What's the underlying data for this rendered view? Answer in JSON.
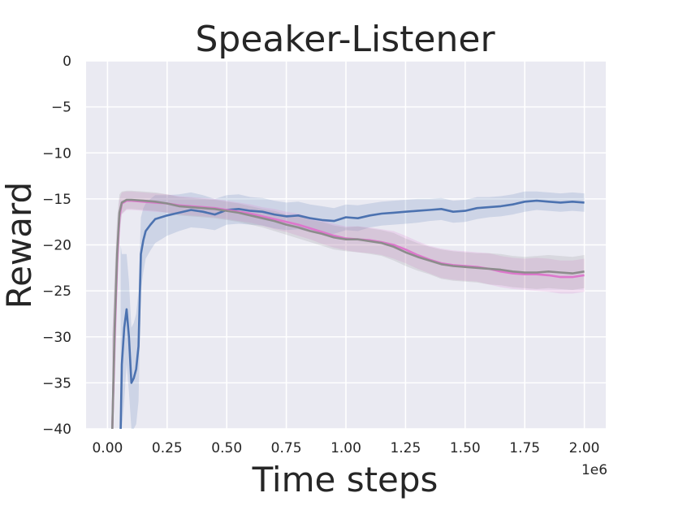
{
  "chart_data": {
    "type": "line",
    "title": "Speaker-Listener",
    "xlabel": "Time steps",
    "ylabel": "Reward",
    "x_offset_label": "1e6",
    "xlim": [
      -0.09,
      2.09
    ],
    "ylim": [
      -40,
      0
    ],
    "xticks": [
      0.0,
      0.25,
      0.5,
      0.75,
      1.0,
      1.25,
      1.5,
      1.75,
      2.0
    ],
    "xtick_labels": [
      "0.00",
      "0.25",
      "0.50",
      "0.75",
      "1.00",
      "1.25",
      "1.50",
      "1.75",
      "2.00"
    ],
    "yticks": [
      0,
      -5,
      -10,
      -15,
      -20,
      -25,
      -30,
      -35,
      -40
    ],
    "ytick_labels": [
      "0",
      "−5",
      "−10",
      "−15",
      "−20",
      "−25",
      "−30",
      "−35",
      "−40"
    ],
    "grid": true,
    "legend": "none",
    "background": "#eaeaf2",
    "series": [
      {
        "color": "#4c72b0",
        "x": [
          0.055,
          0.06,
          0.07,
          0.08,
          0.09,
          0.1,
          0.11,
          0.12,
          0.13,
          0.14,
          0.15,
          0.16,
          0.18,
          0.2,
          0.25,
          0.3,
          0.35,
          0.4,
          0.45,
          0.5,
          0.55,
          0.6,
          0.65,
          0.7,
          0.75,
          0.8,
          0.85,
          0.9,
          0.95,
          1.0,
          1.05,
          1.1,
          1.15,
          1.2,
          1.25,
          1.3,
          1.35,
          1.4,
          1.45,
          1.5,
          1.55,
          1.6,
          1.65,
          1.7,
          1.75,
          1.8,
          1.85,
          1.9,
          1.95,
          2.0
        ],
        "y": [
          -40,
          -33,
          -29,
          -27,
          -30,
          -35,
          -34.5,
          -33.5,
          -31,
          -21,
          -19.5,
          -18.5,
          -17.8,
          -17.2,
          -16.8,
          -16.5,
          -16.2,
          -16.4,
          -16.7,
          -16.2,
          -16.1,
          -16.3,
          -16.4,
          -16.7,
          -16.9,
          -16.8,
          -17.1,
          -17.3,
          -17.4,
          -17.0,
          -17.1,
          -16.8,
          -16.6,
          -16.5,
          -16.4,
          -16.3,
          -16.2,
          -16.1,
          -16.4,
          -16.3,
          -16.0,
          -15.9,
          -15.8,
          -15.6,
          -15.3,
          -15.2,
          -15.3,
          -15.4,
          -15.3,
          -15.4
        ],
        "band": [
          20,
          12,
          8,
          6,
          6,
          6,
          6,
          6,
          6,
          4,
          3.5,
          3,
          2.8,
          2.6,
          2.2,
          2.0,
          1.9,
          1.8,
          1.7,
          1.6,
          1.6,
          1.5,
          1.5,
          1.5,
          1.5,
          1.5,
          1.5,
          1.5,
          1.4,
          1.4,
          1.4,
          1.3,
          1.3,
          1.3,
          1.3,
          1.3,
          1.2,
          1.2,
          1.2,
          1.2,
          1.2,
          1.1,
          1.1,
          1.1,
          1.1,
          1.0,
          1.0,
          1.0,
          1.0,
          1.0
        ]
      },
      {
        "color": "#dd77cc",
        "x": [
          0.02,
          0.03,
          0.04,
          0.05,
          0.06,
          0.08,
          0.1,
          0.15,
          0.2,
          0.25,
          0.3,
          0.35,
          0.4,
          0.45,
          0.5,
          0.55,
          0.6,
          0.65,
          0.7,
          0.75,
          0.8,
          0.85,
          0.9,
          0.95,
          1.0,
          1.05,
          1.1,
          1.15,
          1.2,
          1.25,
          1.3,
          1.35,
          1.4,
          1.45,
          1.5,
          1.55,
          1.6,
          1.65,
          1.7,
          1.75,
          1.8,
          1.85,
          1.9,
          1.95,
          2.0
        ],
        "y": [
          -40,
          -30,
          -22,
          -17,
          -15.5,
          -15.2,
          -15.2,
          -15.3,
          -15.4,
          -15.5,
          -15.7,
          -15.8,
          -15.9,
          -16.0,
          -16.2,
          -16.4,
          -16.6,
          -16.9,
          -17.2,
          -17.5,
          -17.8,
          -18.2,
          -18.6,
          -19.0,
          -19.3,
          -19.4,
          -19.5,
          -19.7,
          -20.0,
          -20.5,
          -21.1,
          -21.6,
          -22.0,
          -22.2,
          -22.3,
          -22.4,
          -22.6,
          -22.9,
          -23.1,
          -23.2,
          -23.2,
          -23.3,
          -23.5,
          -23.5,
          -23.3
        ],
        "band": [
          10,
          6,
          4,
          2,
          1.2,
          1.0,
          1.0,
          1.0,
          1.0,
          1.0,
          1.0,
          1.0,
          1.0,
          1.0,
          1.0,
          1.0,
          1.0,
          1.0,
          1.1,
          1.1,
          1.2,
          1.2,
          1.3,
          1.3,
          1.3,
          1.4,
          1.4,
          1.4,
          1.5,
          1.5,
          1.5,
          1.5,
          1.6,
          1.6,
          1.6,
          1.6,
          1.7,
          1.7,
          1.7,
          1.7,
          1.8,
          1.8,
          1.8,
          1.8,
          1.8
        ]
      },
      {
        "color": "#8c8c8c",
        "x": [
          0.02,
          0.03,
          0.04,
          0.05,
          0.06,
          0.08,
          0.1,
          0.15,
          0.2,
          0.25,
          0.3,
          0.35,
          0.4,
          0.45,
          0.5,
          0.55,
          0.6,
          0.65,
          0.7,
          0.75,
          0.8,
          0.85,
          0.9,
          0.95,
          1.0,
          1.05,
          1.1,
          1.15,
          1.2,
          1.25,
          1.3,
          1.35,
          1.4,
          1.45,
          1.5,
          1.55,
          1.6,
          1.65,
          1.7,
          1.75,
          1.8,
          1.85,
          1.9,
          1.95,
          2.0
        ],
        "y": [
          -40,
          -29,
          -21,
          -16.5,
          -15.4,
          -15.1,
          -15.1,
          -15.2,
          -15.3,
          -15.5,
          -15.8,
          -15.9,
          -16.0,
          -16.1,
          -16.3,
          -16.5,
          -16.8,
          -17.1,
          -17.4,
          -17.8,
          -18.1,
          -18.5,
          -18.8,
          -19.2,
          -19.4,
          -19.4,
          -19.6,
          -19.8,
          -20.2,
          -20.8,
          -21.3,
          -21.7,
          -22.1,
          -22.3,
          -22.4,
          -22.5,
          -22.6,
          -22.7,
          -22.9,
          -23.0,
          -23.0,
          -22.9,
          -23.0,
          -23.1,
          -22.9
        ],
        "band": [
          10,
          6,
          4,
          2,
          1.2,
          1.0,
          1.0,
          1.0,
          1.0,
          1.0,
          1.0,
          1.0,
          1.0,
          1.0,
          1.0,
          1.0,
          1.0,
          1.0,
          1.1,
          1.1,
          1.2,
          1.2,
          1.3,
          1.3,
          1.3,
          1.4,
          1.4,
          1.4,
          1.5,
          1.5,
          1.5,
          1.5,
          1.6,
          1.6,
          1.6,
          1.6,
          1.7,
          1.7,
          1.7,
          1.7,
          1.8,
          1.8,
          1.8,
          1.8,
          1.8
        ]
      }
    ]
  }
}
